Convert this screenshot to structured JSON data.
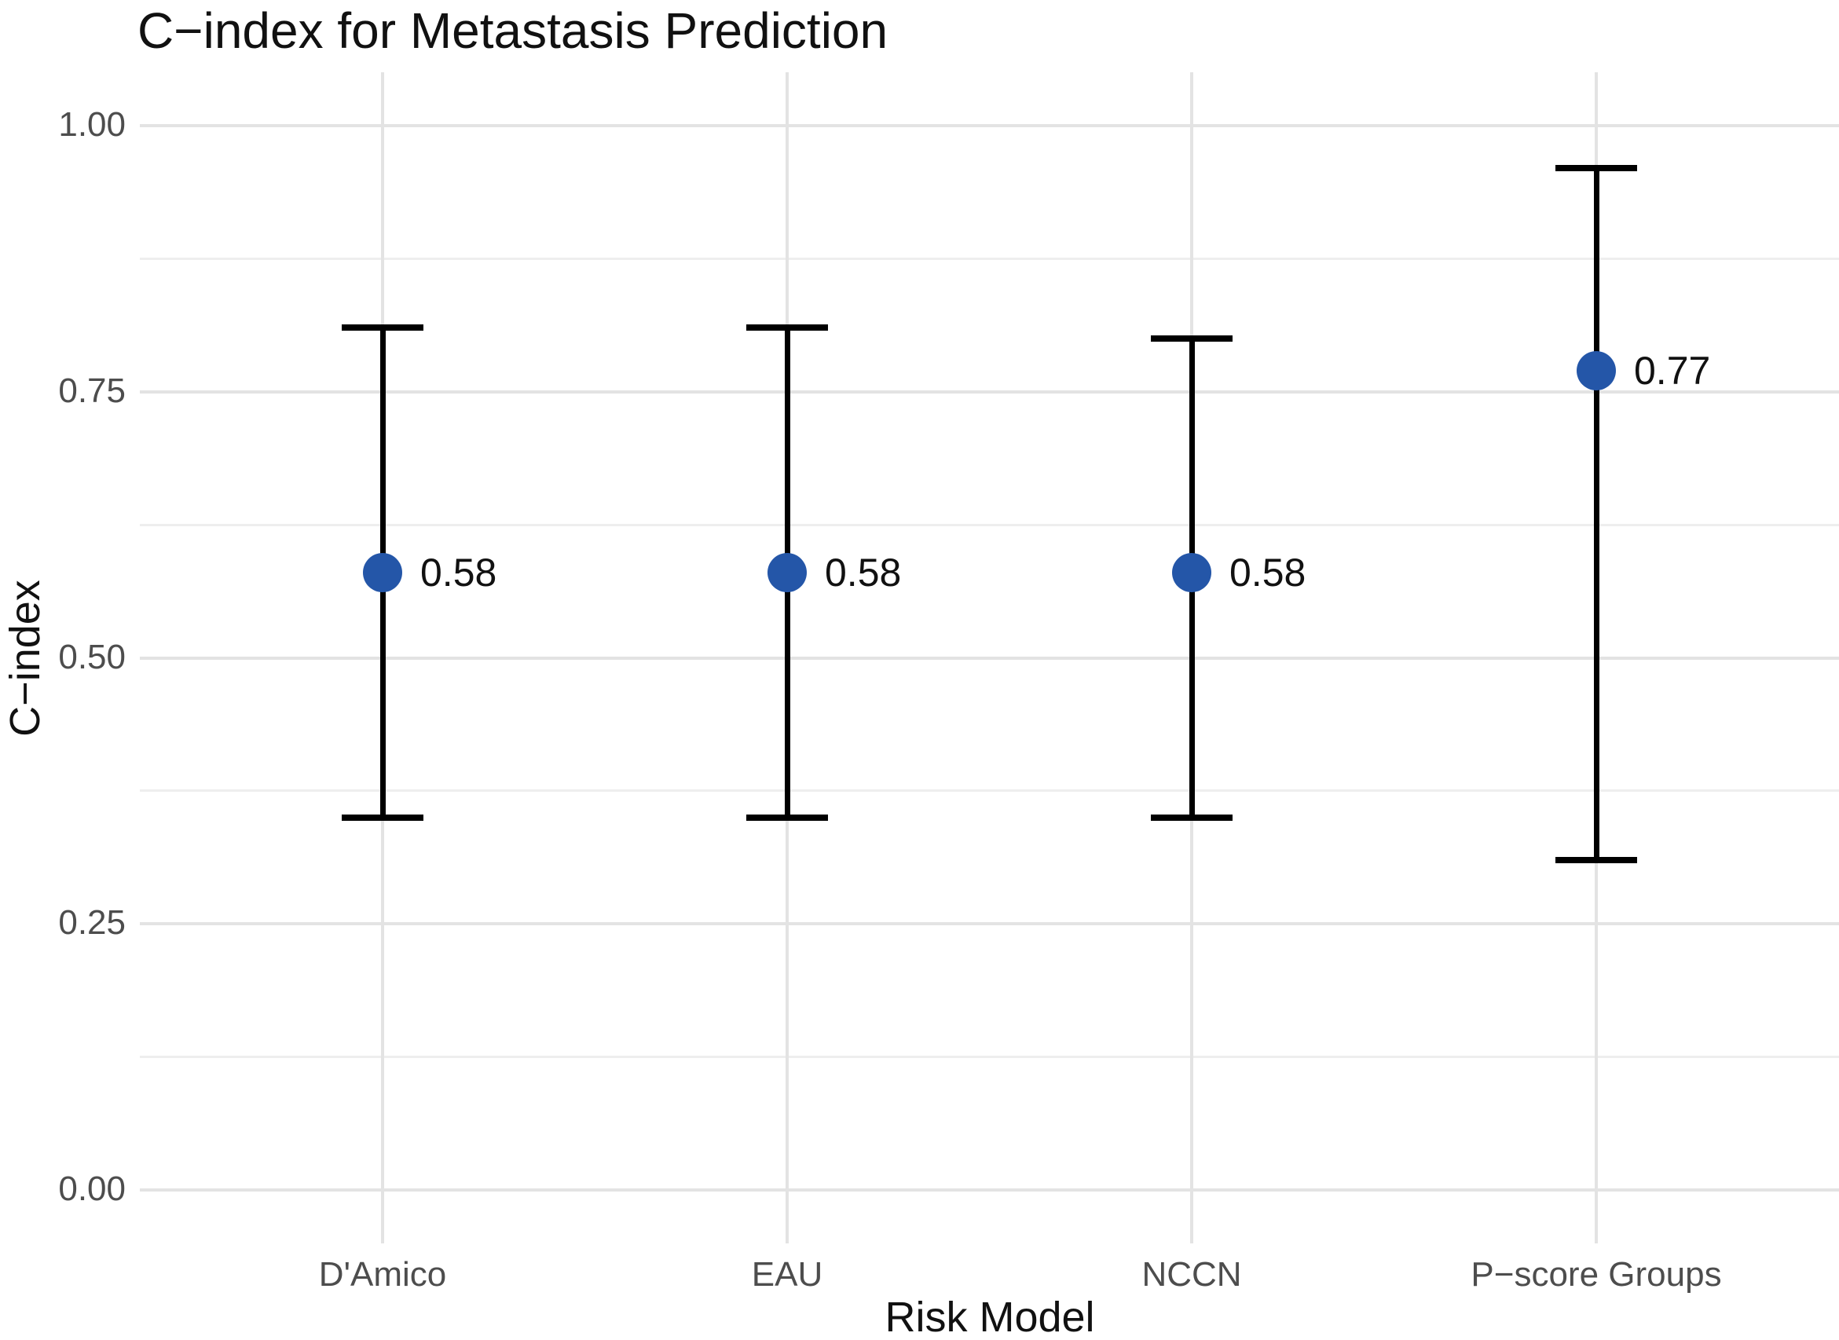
{
  "chart": {
    "title": "C−index for Metastasis Prediction",
    "xlabel": "Risk Model",
    "ylabel": "C−index"
  },
  "chart_data": {
    "type": "pointrange",
    "title": "C−index for Metastasis Prediction",
    "xlabel": "Risk Model",
    "ylabel": "C−index",
    "categories": [
      "D'Amico",
      "EAU",
      "NCCN",
      "P−score Groups"
    ],
    "points": [
      {
        "category": "D'Amico",
        "value": 0.58,
        "label": "0.58",
        "lower": 0.35,
        "upper": 0.81
      },
      {
        "category": "EAU",
        "value": 0.58,
        "label": "0.58",
        "lower": 0.35,
        "upper": 0.81
      },
      {
        "category": "NCCN",
        "value": 0.58,
        "label": "0.58",
        "lower": 0.35,
        "upper": 0.8
      },
      {
        "category": "P−score Groups",
        "value": 0.77,
        "label": "0.77",
        "lower": 0.31,
        "upper": 0.96
      }
    ],
    "ylim": [
      0,
      1
    ],
    "y_major_ticks": [
      {
        "value": 0.0,
        "label": "0.00"
      },
      {
        "value": 0.25,
        "label": "0.25"
      },
      {
        "value": 0.5,
        "label": "0.50"
      },
      {
        "value": 0.75,
        "label": "0.75"
      },
      {
        "value": 1.0,
        "label": "1.00"
      }
    ],
    "y_minor_ticks": [
      0.125,
      0.375,
      0.625,
      0.875
    ],
    "grid": "major-and-minor-horizontal, major-vertical-at-categories",
    "legend": "none",
    "colors": {
      "point": "#2456a8",
      "errorbar": "#000000",
      "grid_major": "#e3e3e3",
      "grid_minor": "#eeeeee",
      "tick_label": "#4d4d4d",
      "text": "#111111"
    }
  }
}
